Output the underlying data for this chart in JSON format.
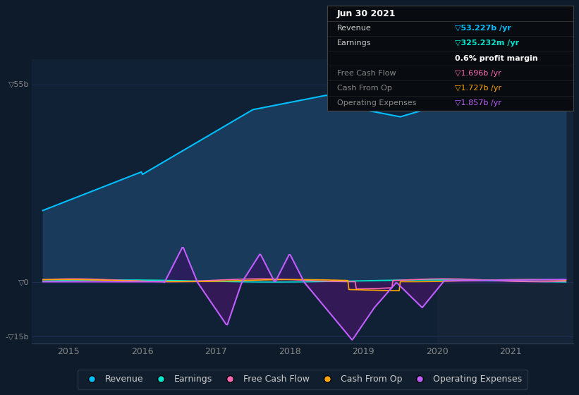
{
  "background_color": "#0d1b2a",
  "plot_bg_color": "#102035",
  "xlim": [
    2014.5,
    2021.85
  ],
  "ylim": [
    -17,
    62
  ],
  "y_ticks": [
    55,
    0,
    -15
  ],
  "y_tick_labels": [
    "▽55b",
    "▽0",
    "-▽15b"
  ],
  "x_ticks": [
    2015,
    2016,
    2017,
    2018,
    2019,
    2020,
    2021
  ],
  "x_tick_labels": [
    "2015",
    "2016",
    "2017",
    "2018",
    "2019",
    "2020",
    "2021"
  ],
  "legend_items": [
    {
      "label": "Revenue",
      "color": "#00bfff"
    },
    {
      "label": "Earnings",
      "color": "#00e5cc"
    },
    {
      "label": "Free Cash Flow",
      "color": "#ff69b4"
    },
    {
      "label": "Cash From Op",
      "color": "#ffa500"
    },
    {
      "label": "Operating Expenses",
      "color": "#bf5fff"
    }
  ],
  "revenue_fill_color": "#1a3a5c",
  "op_exp_fill_pos_color": "#2d1a5c",
  "op_exp_fill_neg_color": "#3a1a5c",
  "shaded_region_color": "#1a2a3a",
  "grid_color": "#1e3050",
  "info_box": {
    "bg": "#080c10",
    "border": "#444444",
    "title": "Jun 30 2021",
    "title_color": "#ffffff",
    "rows": [
      {
        "label": "Revenue",
        "value": "▽53.227b /yr",
        "value_color": "#00bfff",
        "label_color": "#cccccc",
        "bold": true
      },
      {
        "label": "Earnings",
        "value": "▽325.232m /yr",
        "value_color": "#00e5cc",
        "label_color": "#cccccc",
        "bold": true
      },
      {
        "label": "",
        "value": "0.6% profit margin",
        "value_color": "#ffffff",
        "label_color": "",
        "bold": true
      },
      {
        "label": "Free Cash Flow",
        "value": "▽1.696b /yr",
        "value_color": "#ff69b4",
        "label_color": "#888888",
        "bold": false
      },
      {
        "label": "Cash From Op",
        "value": "▽1.727b /yr",
        "value_color": "#ffa500",
        "label_color": "#888888",
        "bold": false
      },
      {
        "label": "Operating Expenses",
        "value": "▽1.857b /yr",
        "value_color": "#bf5fff",
        "label_color": "#888888",
        "bold": false
      }
    ]
  }
}
